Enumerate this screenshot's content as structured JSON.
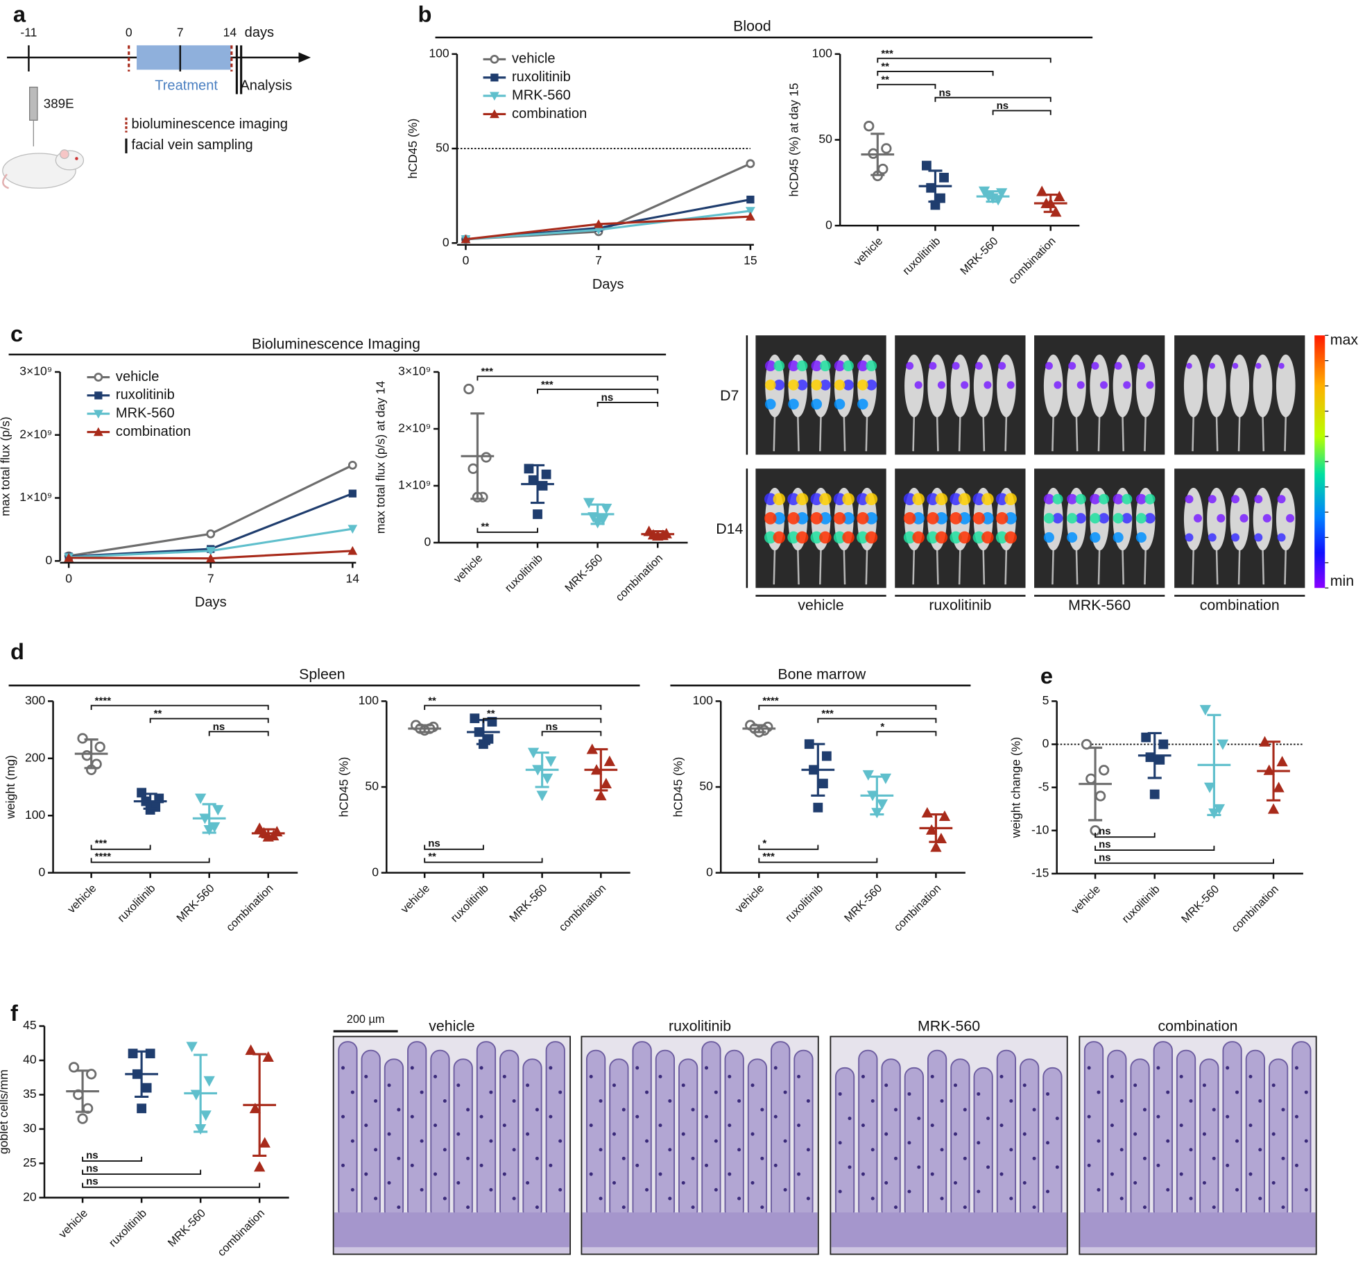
{
  "panel_labels": [
    "a",
    "b",
    "c",
    "d",
    "e",
    "f"
  ],
  "section_titles": [
    "Blood",
    "Bioluminescence Imaging",
    "Spleen",
    "Bone marrow"
  ],
  "timeline": {
    "ticks": [
      "-11",
      "0",
      "7",
      "14"
    ],
    "unit": "days",
    "treatment": "Treatment",
    "analysis": "Analysis",
    "model": "389E",
    "legend": [
      "bioluminescence imaging",
      "facial vein sampling"
    ]
  },
  "imaging": {
    "rows": [
      "D7",
      "D14"
    ],
    "columns": [
      "vehicle",
      "ruxolitinib",
      "MRK-560",
      "combination"
    ],
    "scale": [
      "max",
      "min"
    ]
  },
  "histology": {
    "scale_bar": "200 µm",
    "columns": [
      "vehicle",
      "ruxolitinib",
      "MRK-560",
      "combination"
    ]
  },
  "chart_data": [
    {
      "type": "line",
      "x": [
        0,
        7,
        15
      ],
      "xlim": [
        0,
        15
      ],
      "xticks": [
        0,
        7,
        15
      ],
      "ylim": [
        0,
        100
      ],
      "yticks": [
        0,
        50,
        100
      ],
      "xlabel": "Days",
      "ylabel": "hCD45 (%)",
      "reference_line": 50,
      "legend": "upper left",
      "series": [
        {
          "name": "vehicle",
          "color": "#6d6d6d",
          "marker": "circle-open",
          "values": [
            2,
            6,
            42
          ]
        },
        {
          "name": "ruxolitinib",
          "color": "#1f3d6e",
          "marker": "square",
          "values": [
            2,
            8,
            23
          ]
        },
        {
          "name": "MRK-560",
          "color": "#5fbfcc",
          "marker": "triangle-down",
          "values": [
            2,
            7,
            17
          ]
        },
        {
          "name": "combination",
          "color": "#a82a1a",
          "marker": "triangle-up",
          "values": [
            2,
            10,
            14
          ]
        }
      ]
    },
    {
      "type": "dot",
      "categories": [
        "vehicle",
        "ruxolitinib",
        "MRK-560",
        "combination"
      ],
      "colors": [
        "#6d6d6d",
        "#1f3d6e",
        "#5fbfcc",
        "#a82a1a"
      ],
      "markers": [
        "circle-open",
        "square",
        "triangle-down",
        "triangle-up"
      ],
      "ylim": [
        0,
        100
      ],
      "yticks": [
        0,
        50,
        100
      ],
      "ylabel": "hCD45 (%) at day 15",
      "points": [
        [
          58,
          45,
          42,
          33,
          29
        ],
        [
          35,
          28,
          22,
          16,
          12
        ],
        [
          20,
          19,
          17,
          15,
          16
        ],
        [
          20,
          17,
          13,
          8,
          13
        ]
      ],
      "means": [
        41.5,
        23,
        17,
        13
      ],
      "sd": [
        12,
        9,
        3,
        5
      ],
      "brackets_top": [
        {
          "between": [
            0,
            3
          ],
          "label": "***"
        },
        {
          "between": [
            0,
            2
          ],
          "label": "**"
        },
        {
          "between": [
            0,
            1
          ],
          "label": "**"
        },
        {
          "between": [
            1,
            3
          ],
          "label": "ns"
        },
        {
          "between": [
            2,
            3
          ],
          "label": "ns"
        }
      ],
      "brackets_bottom": []
    },
    {
      "type": "line",
      "x": [
        0,
        7,
        14
      ],
      "xlim": [
        0,
        14
      ],
      "xticks": [
        0,
        7,
        14
      ],
      "ylim": [
        0,
        3000000000
      ],
      "yticks": [
        0,
        {
          "value": 1000000000,
          "label": "1×10⁹"
        },
        {
          "value": 2000000000,
          "label": "2×10⁹"
        },
        {
          "value": 3000000000,
          "label": "3×10⁹"
        }
      ],
      "xlabel": "Days",
      "ylabel": "max total flux (p/s)",
      "legend": "upper left",
      "series": [
        {
          "name": "vehicle",
          "color": "#6d6d6d",
          "marker": "circle-open",
          "values": [
            80000000,
            430000000,
            1520000000
          ]
        },
        {
          "name": "ruxolitinib",
          "color": "#1f3d6e",
          "marker": "square",
          "values": [
            70000000,
            190000000,
            1070000000
          ]
        },
        {
          "name": "MRK-560",
          "color": "#5fbfcc",
          "marker": "triangle-down",
          "values": [
            60000000,
            160000000,
            510000000
          ]
        },
        {
          "name": "combination",
          "color": "#a82a1a",
          "marker": "triangle-up",
          "values": [
            50000000,
            40000000,
            160000000
          ]
        }
      ]
    },
    {
      "type": "dot",
      "categories": [
        "vehicle",
        "ruxolitinib",
        "MRK-560",
        "combination"
      ],
      "colors": [
        "#6d6d6d",
        "#1f3d6e",
        "#5fbfcc",
        "#a82a1a"
      ],
      "markers": [
        "circle-open",
        "square",
        "triangle-down",
        "triangle-up"
      ],
      "ylim": [
        0,
        3000000000
      ],
      "yticks": [
        0,
        {
          "value": 1000000000,
          "label": "1×10⁹"
        },
        {
          "value": 2000000000,
          "label": "2×10⁹"
        },
        {
          "value": 3000000000,
          "label": "3×10⁹"
        }
      ],
      "ylabel": "max total flux (p/s) at day 14",
      "points": [
        [
          2700000000,
          1500000000,
          1300000000,
          800000000,
          800000000
        ],
        [
          1300000000,
          1200000000,
          1100000000,
          1000000000,
          500000000
        ],
        [
          700000000,
          600000000,
          450000000,
          400000000,
          350000000
        ],
        [
          200000000,
          160000000,
          140000000,
          130000000,
          120000000
        ]
      ],
      "means": [
        1520000000,
        1030000000,
        500000000,
        150000000
      ],
      "sd": [
        750000000,
        330000000,
        170000000,
        50000000
      ],
      "brackets_top": [
        {
          "between": [
            0,
            3
          ],
          "label": "***"
        },
        {
          "between": [
            1,
            3
          ],
          "label": "***"
        },
        {
          "between": [
            2,
            3
          ],
          "label": "ns"
        }
      ],
      "brackets_bottom": [
        {
          "between": [
            0,
            1
          ],
          "label": "**"
        }
      ]
    },
    {
      "type": "dot",
      "categories": [
        "vehicle",
        "ruxolitinib",
        "MRK-560",
        "combination"
      ],
      "colors": [
        "#6d6d6d",
        "#1f3d6e",
        "#5fbfcc",
        "#a82a1a"
      ],
      "markers": [
        "circle-open",
        "square",
        "triangle-down",
        "triangle-up"
      ],
      "ylim": [
        0,
        300
      ],
      "yticks": [
        0,
        100,
        200,
        300
      ],
      "ylabel": "weight (mg)",
      "points": [
        [
          235,
          220,
          205,
          190,
          180
        ],
        [
          140,
          130,
          125,
          115,
          110
        ],
        [
          130,
          110,
          95,
          80,
          75
        ],
        [
          78,
          72,
          70,
          65,
          63
        ]
      ],
      "means": [
        208,
        125,
        95,
        69
      ],
      "sd": [
        25,
        13,
        25,
        7
      ],
      "brackets_top": [
        {
          "between": [
            0,
            3
          ],
          "label": "****"
        },
        {
          "between": [
            1,
            3
          ],
          "label": "**"
        },
        {
          "between": [
            2,
            3
          ],
          "label": "ns"
        }
      ],
      "brackets_bottom": [
        {
          "between": [
            0,
            1
          ],
          "label": "***"
        },
        {
          "between": [
            0,
            2
          ],
          "label": "****"
        }
      ]
    },
    {
      "type": "dot",
      "categories": [
        "vehicle",
        "ruxolitinib",
        "MRK-560",
        "combination"
      ],
      "colors": [
        "#6d6d6d",
        "#1f3d6e",
        "#5fbfcc",
        "#a82a1a"
      ],
      "markers": [
        "circle-open",
        "square",
        "triangle-down",
        "triangle-up"
      ],
      "ylim": [
        0,
        100
      ],
      "yticks": [
        0,
        50,
        100
      ],
      "ylabel": "hCD45 (%)",
      "points": [
        [
          86,
          85,
          84,
          84,
          83
        ],
        [
          90,
          88,
          82,
          78,
          75
        ],
        [
          70,
          65,
          60,
          55,
          45
        ],
        [
          72,
          65,
          60,
          52,
          45
        ]
      ],
      "means": [
        84,
        82,
        60,
        60
      ],
      "sd": [
        2,
        7,
        10,
        12
      ],
      "brackets_top": [
        {
          "between": [
            0,
            3
          ],
          "label": "**"
        },
        {
          "between": [
            1,
            3
          ],
          "label": "**"
        },
        {
          "between": [
            2,
            3
          ],
          "label": "ns"
        }
      ],
      "brackets_bottom": [
        {
          "between": [
            0,
            1
          ],
          "label": "ns"
        },
        {
          "between": [
            0,
            2
          ],
          "label": "**"
        }
      ]
    },
    {
      "type": "dot",
      "categories": [
        "vehicle",
        "ruxolitinib",
        "MRK-560",
        "combination"
      ],
      "colors": [
        "#6d6d6d",
        "#1f3d6e",
        "#5fbfcc",
        "#a82a1a"
      ],
      "markers": [
        "circle-open",
        "square",
        "triangle-down",
        "triangle-up"
      ],
      "ylim": [
        0,
        100
      ],
      "yticks": [
        0,
        50,
        100
      ],
      "ylabel": "hCD45 (%)",
      "points": [
        [
          86,
          85,
          84,
          83,
          82
        ],
        [
          75,
          68,
          60,
          52,
          38
        ],
        [
          57,
          55,
          45,
          40,
          35
        ],
        [
          35,
          33,
          25,
          20,
          15
        ]
      ],
      "means": [
        84,
        60,
        45,
        26
      ],
      "sd": [
        2,
        15,
        11,
        8
      ],
      "brackets_top": [
        {
          "between": [
            0,
            3
          ],
          "label": "****"
        },
        {
          "between": [
            1,
            3
          ],
          "label": "***"
        },
        {
          "between": [
            2,
            3
          ],
          "label": "*"
        }
      ],
      "brackets_bottom": [
        {
          "between": [
            0,
            1
          ],
          "label": "*"
        },
        {
          "between": [
            0,
            2
          ],
          "label": "***"
        }
      ]
    },
    {
      "type": "dot",
      "categories": [
        "vehicle",
        "ruxolitinib",
        "MRK-560",
        "combination"
      ],
      "colors": [
        "#6d6d6d",
        "#1f3d6e",
        "#5fbfcc",
        "#a82a1a"
      ],
      "markers": [
        "circle-open",
        "square",
        "triangle-down",
        "triangle-up"
      ],
      "ylim": [
        -15,
        5
      ],
      "yticks": [
        -15,
        -10,
        -5,
        0,
        5
      ],
      "ylabel": "weight change (%)",
      "reference_line": 0,
      "points": [
        [
          0,
          -3,
          -4,
          -6,
          -10
        ],
        [
          0.8,
          0,
          -1.5,
          -1.8,
          -5.8
        ],
        [
          4,
          0,
          -5,
          -7.5,
          -8
        ],
        [
          0.3,
          -2,
          -3,
          -5,
          -7.5
        ]
      ],
      "means": [
        -4.6,
        -1.3,
        -2.4,
        -3.1
      ],
      "sd": [
        4.2,
        2.6,
        5.8,
        3.4
      ],
      "brackets_top": [],
      "brackets_bottom": [
        {
          "between": [
            0,
            1
          ],
          "label": "ns"
        },
        {
          "between": [
            0,
            2
          ],
          "label": "ns"
        },
        {
          "between": [
            0,
            3
          ],
          "label": "ns"
        }
      ]
    },
    {
      "type": "dot",
      "categories": [
        "vehicle",
        "ruxolitinib",
        "MRK-560",
        "combination"
      ],
      "colors": [
        "#6d6d6d",
        "#1f3d6e",
        "#5fbfcc",
        "#a82a1a"
      ],
      "markers": [
        "circle-open",
        "square",
        "triangle-down",
        "triangle-up"
      ],
      "ylim": [
        20,
        45
      ],
      "yticks": [
        20,
        25,
        30,
        35,
        40,
        45
      ],
      "ylabel": "goblet cells/mm",
      "points": [
        [
          39,
          38,
          35,
          33,
          31.5
        ],
        [
          41,
          41,
          38,
          36,
          33
        ],
        [
          42,
          37,
          35,
          32,
          30
        ],
        [
          41.5,
          40.5,
          33,
          28,
          24.5
        ]
      ],
      "means": [
        35.5,
        38,
        35.2,
        33.5
      ],
      "sd": [
        3,
        3.3,
        5.6,
        7.4
      ],
      "brackets_top": [],
      "brackets_bottom": [
        {
          "between": [
            0,
            1
          ],
          "label": "ns"
        },
        {
          "between": [
            0,
            2
          ],
          "label": "ns"
        },
        {
          "between": [
            0,
            3
          ],
          "label": "ns"
        }
      ]
    }
  ]
}
